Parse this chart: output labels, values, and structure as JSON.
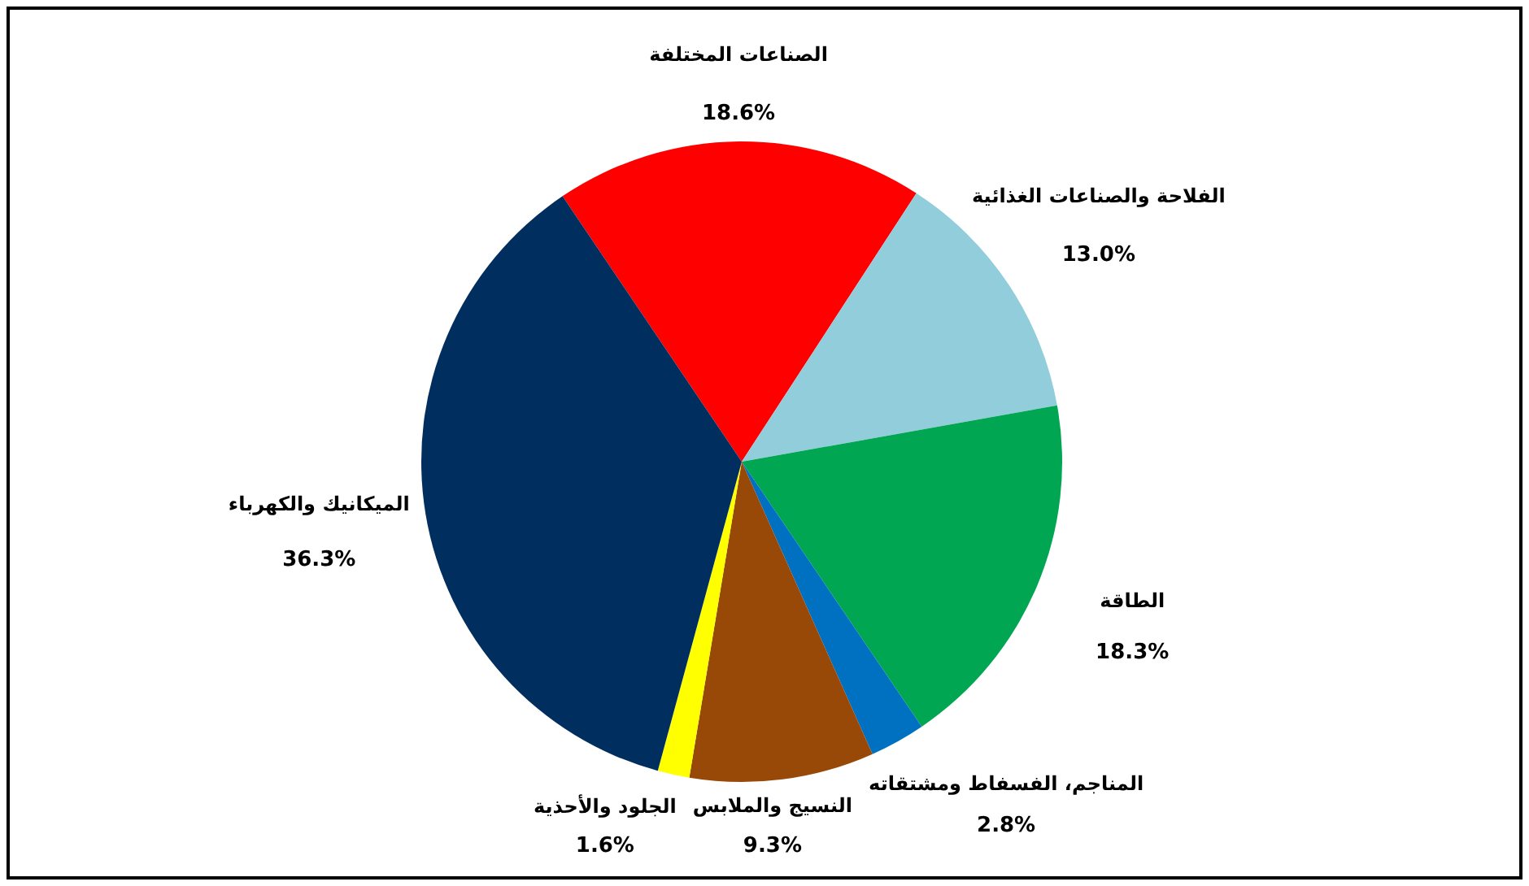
{
  "chart_data": {
    "type": "pie",
    "categories": [
      "الصناعات المختلفة",
      "الفلاحة والصناعات الغذائية",
      "الطاقة",
      "المناجم، الفسفاط ومشتقاته",
      "النسيج والملابس",
      "الجلود والأحذية",
      "الميكانيك والكهرباء"
    ],
    "values": [
      18.6,
      13.0,
      18.3,
      2.8,
      9.3,
      1.6,
      36.3
    ],
    "colors": [
      "#ff0000",
      "#92cddc",
      "#00a651",
      "#0070c0",
      "#984807",
      "#ffff00",
      "#002f5f"
    ],
    "value_labels": [
      "18.6%",
      "13.0%",
      "18.3%",
      "2.8%",
      "9.3%",
      "1.6%",
      "36.3%"
    ]
  }
}
